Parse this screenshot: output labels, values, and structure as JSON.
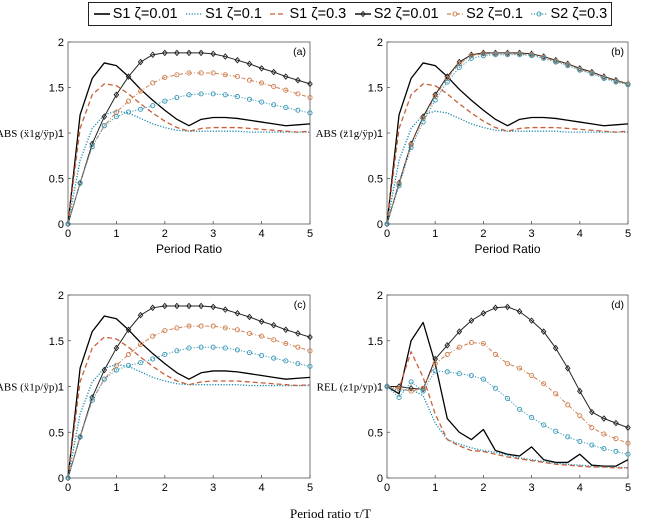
{
  "legend": [
    {
      "label": "S1 ζ=0.01",
      "color": "#000000",
      "dash": "",
      "marker": ""
    },
    {
      "label": "S1 ζ=0.1",
      "color": "#1b8bb0",
      "dash": "1.2,1.6",
      "marker": ""
    },
    {
      "label": "S1 ζ=0.3",
      "color": "#c8603a",
      "dash": "5,3",
      "marker": ""
    },
    {
      "label": "S2 ζ=0.01",
      "color": "#222222",
      "dash": "",
      "marker": "diamond"
    },
    {
      "label": "S2 ζ=0.1",
      "color": "#d08050",
      "dash": "4,2,1,2",
      "marker": "circle"
    },
    {
      "label": "S2 ζ=0.3",
      "color": "#3a9ab8",
      "dash": "1.2,1.6",
      "marker": "circle"
    }
  ],
  "global_xlabel": "Period ratio τ/T",
  "chart_data": [
    {
      "type": "line",
      "panel_label": "(a)",
      "xlabel": "Period Ratio",
      "ylabel": "ABS (ẍ1g/ÿp)",
      "xlim": [
        0,
        5
      ],
      "ylim": [
        0,
        2
      ],
      "xticks": [
        "0",
        "1",
        "2",
        "3",
        "4",
        "5"
      ],
      "yticks": [
        "0",
        "0.5",
        "1",
        "1.5",
        "2"
      ],
      "x": [
        0,
        0.25,
        0.5,
        0.75,
        1,
        1.25,
        1.5,
        1.75,
        2,
        2.25,
        2.5,
        2.75,
        3,
        3.25,
        3.5,
        3.75,
        4,
        4.25,
        4.5,
        4.75,
        5
      ],
      "series": [
        {
          "name": "S1 ζ=0.01",
          "values": [
            0,
            1.2,
            1.6,
            1.77,
            1.74,
            1.62,
            1.48,
            1.36,
            1.25,
            1.15,
            1.08,
            1.15,
            1.17,
            1.17,
            1.16,
            1.14,
            1.12,
            1.1,
            1.08,
            1.09,
            1.1
          ]
        },
        {
          "name": "S1 ζ=0.1",
          "values": [
            0,
            0.7,
            1.05,
            1.2,
            1.24,
            1.22,
            1.16,
            1.1,
            1.06,
            1.03,
            1.02,
            1.02,
            1.02,
            1.02,
            1.02,
            1.01,
            1.01,
            1.01,
            1.01,
            1.01,
            1.01
          ]
        },
        {
          "name": "S1 ζ=0.3",
          "values": [
            0,
            1.05,
            1.42,
            1.54,
            1.52,
            1.43,
            1.32,
            1.22,
            1.13,
            1.06,
            1.02,
            1.05,
            1.06,
            1.06,
            1.06,
            1.05,
            1.04,
            1.03,
            1.02,
            1.01,
            1.02
          ]
        },
        {
          "name": "S2 ζ=0.01",
          "values": [
            0,
            0.45,
            0.88,
            1.18,
            1.42,
            1.62,
            1.78,
            1.86,
            1.88,
            1.88,
            1.88,
            1.88,
            1.87,
            1.84,
            1.8,
            1.76,
            1.71,
            1.67,
            1.62,
            1.58,
            1.54
          ]
        },
        {
          "name": "S2 ζ=0.1",
          "values": [
            0,
            0.45,
            0.85,
            1.08,
            1.23,
            1.35,
            1.46,
            1.55,
            1.61,
            1.64,
            1.66,
            1.66,
            1.66,
            1.64,
            1.62,
            1.58,
            1.55,
            1.51,
            1.47,
            1.43,
            1.39
          ]
        },
        {
          "name": "S2 ζ=0.3",
          "values": [
            0,
            0.45,
            0.85,
            1.08,
            1.18,
            1.23,
            1.26,
            1.3,
            1.35,
            1.39,
            1.42,
            1.43,
            1.43,
            1.42,
            1.4,
            1.37,
            1.34,
            1.31,
            1.28,
            1.25,
            1.22
          ]
        }
      ]
    },
    {
      "type": "line",
      "panel_label": "(b)",
      "xlabel": "Period Ratio",
      "ylabel": "ABS (z̈1g/ÿp)",
      "xlim": [
        0,
        5
      ],
      "ylim": [
        0,
        2
      ],
      "xticks": [
        "0",
        "1",
        "2",
        "3",
        "4",
        "5"
      ],
      "yticks": [
        "0",
        "0.5",
        "1",
        "1.5",
        "2"
      ],
      "x": [
        0,
        0.25,
        0.5,
        0.75,
        1,
        1.25,
        1.5,
        1.75,
        2,
        2.25,
        2.5,
        2.75,
        3,
        3.25,
        3.5,
        3.75,
        4,
        4.25,
        4.5,
        4.75,
        5
      ],
      "series": [
        {
          "name": "S1 ζ=0.01",
          "values": [
            0,
            1.2,
            1.6,
            1.77,
            1.74,
            1.62,
            1.48,
            1.36,
            1.25,
            1.15,
            1.08,
            1.15,
            1.17,
            1.17,
            1.16,
            1.14,
            1.12,
            1.1,
            1.08,
            1.09,
            1.1
          ]
        },
        {
          "name": "S1 ζ=0.1",
          "values": [
            0,
            0.7,
            1.05,
            1.2,
            1.24,
            1.22,
            1.16,
            1.1,
            1.06,
            1.03,
            1.02,
            1.02,
            1.02,
            1.02,
            1.02,
            1.01,
            1.01,
            1.01,
            1.01,
            1.01,
            1.01
          ]
        },
        {
          "name": "S1 ζ=0.3",
          "values": [
            0,
            1.05,
            1.42,
            1.54,
            1.52,
            1.43,
            1.32,
            1.22,
            1.13,
            1.06,
            1.02,
            1.05,
            1.06,
            1.06,
            1.06,
            1.05,
            1.04,
            1.03,
            1.02,
            1.01,
            1.02
          ]
        },
        {
          "name": "S2 ζ=0.01",
          "values": [
            0,
            0.45,
            0.88,
            1.18,
            1.42,
            1.62,
            1.78,
            1.86,
            1.88,
            1.88,
            1.88,
            1.88,
            1.87,
            1.84,
            1.8,
            1.76,
            1.71,
            1.67,
            1.62,
            1.58,
            1.54
          ]
        },
        {
          "name": "S2 ζ=0.1",
          "values": [
            0,
            0.44,
            0.87,
            1.16,
            1.4,
            1.6,
            1.76,
            1.85,
            1.87,
            1.87,
            1.87,
            1.87,
            1.86,
            1.83,
            1.79,
            1.75,
            1.7,
            1.66,
            1.61,
            1.57,
            1.54
          ]
        },
        {
          "name": "S2 ζ=0.3",
          "values": [
            0,
            0.42,
            0.84,
            1.12,
            1.36,
            1.56,
            1.72,
            1.82,
            1.85,
            1.86,
            1.86,
            1.86,
            1.85,
            1.82,
            1.78,
            1.74,
            1.69,
            1.65,
            1.6,
            1.56,
            1.53
          ]
        }
      ]
    },
    {
      "type": "line",
      "panel_label": "(c)",
      "xlabel": "",
      "ylabel": "ABS (ẍ1p/ÿp)",
      "xlim": [
        0,
        5
      ],
      "ylim": [
        0,
        2
      ],
      "xticks": [
        "0",
        "1",
        "2",
        "3",
        "4",
        "5"
      ],
      "yticks": [
        "0",
        "0.5",
        "1",
        "1.5",
        "2"
      ],
      "x": [
        0,
        0.25,
        0.5,
        0.75,
        1,
        1.25,
        1.5,
        1.75,
        2,
        2.25,
        2.5,
        2.75,
        3,
        3.25,
        3.5,
        3.75,
        4,
        4.25,
        4.5,
        4.75,
        5
      ],
      "series": [
        {
          "name": "S1 ζ=0.01",
          "values": [
            0,
            1.2,
            1.6,
            1.77,
            1.74,
            1.62,
            1.48,
            1.36,
            1.25,
            1.15,
            1.08,
            1.15,
            1.17,
            1.17,
            1.16,
            1.14,
            1.12,
            1.1,
            1.08,
            1.09,
            1.1
          ]
        },
        {
          "name": "S1 ζ=0.1",
          "values": [
            0,
            0.7,
            1.05,
            1.2,
            1.24,
            1.22,
            1.16,
            1.1,
            1.06,
            1.03,
            1.02,
            1.02,
            1.02,
            1.02,
            1.02,
            1.01,
            1.01,
            1.01,
            1.01,
            1.01,
            1.01
          ]
        },
        {
          "name": "S1 ζ=0.3",
          "values": [
            0,
            1.05,
            1.42,
            1.54,
            1.52,
            1.43,
            1.32,
            1.22,
            1.13,
            1.06,
            1.02,
            1.05,
            1.06,
            1.06,
            1.06,
            1.05,
            1.04,
            1.03,
            1.02,
            1.01,
            1.02
          ]
        },
        {
          "name": "S2 ζ=0.01",
          "values": [
            0,
            0.45,
            0.88,
            1.18,
            1.42,
            1.62,
            1.78,
            1.86,
            1.88,
            1.88,
            1.88,
            1.88,
            1.87,
            1.84,
            1.8,
            1.76,
            1.71,
            1.67,
            1.62,
            1.58,
            1.54
          ]
        },
        {
          "name": "S2 ζ=0.1",
          "values": [
            0,
            0.45,
            0.85,
            1.08,
            1.23,
            1.35,
            1.46,
            1.55,
            1.61,
            1.64,
            1.66,
            1.66,
            1.66,
            1.64,
            1.62,
            1.58,
            1.55,
            1.51,
            1.47,
            1.43,
            1.39
          ]
        },
        {
          "name": "S2 ζ=0.3",
          "values": [
            0,
            0.45,
            0.85,
            1.08,
            1.18,
            1.23,
            1.26,
            1.3,
            1.35,
            1.39,
            1.42,
            1.43,
            1.43,
            1.42,
            1.4,
            1.37,
            1.34,
            1.31,
            1.28,
            1.25,
            1.22
          ]
        }
      ]
    },
    {
      "type": "line",
      "panel_label": "(d)",
      "xlabel": "",
      "ylabel": "REL (z1p/yp)",
      "xlim": [
        0,
        5
      ],
      "ylim": [
        0,
        2
      ],
      "xticks": [
        "0",
        "1",
        "2",
        "3",
        "4",
        "5"
      ],
      "yticks": [
        "0",
        "0.5",
        "1",
        "1.5",
        "2"
      ],
      "x": [
        0,
        0.25,
        0.5,
        0.75,
        1,
        1.25,
        1.5,
        1.75,
        2,
        2.25,
        2.5,
        2.75,
        3,
        3.25,
        3.5,
        3.75,
        4,
        4.25,
        4.5,
        4.75,
        5
      ],
      "series": [
        {
          "name": "S1 ζ=0.01",
          "values": [
            1,
            0.92,
            1.5,
            1.7,
            1.25,
            0.65,
            0.5,
            0.42,
            0.53,
            0.3,
            0.26,
            0.24,
            0.34,
            0.2,
            0.17,
            0.17,
            0.26,
            0.14,
            0.13,
            0.13,
            0.2
          ]
        },
        {
          "name": "S1 ζ=0.1",
          "values": [
            1,
            0.95,
            0.97,
            0.9,
            0.6,
            0.42,
            0.37,
            0.33,
            0.3,
            0.28,
            0.25,
            0.22,
            0.2,
            0.18,
            0.16,
            0.15,
            0.14,
            0.13,
            0.12,
            0.12,
            0.11
          ]
        },
        {
          "name": "S1 ζ=0.3",
          "values": [
            1,
            0.98,
            1.38,
            1.1,
            0.7,
            0.42,
            0.35,
            0.3,
            0.29,
            0.26,
            0.23,
            0.21,
            0.19,
            0.17,
            0.15,
            0.14,
            0.13,
            0.12,
            0.12,
            0.11,
            0.11
          ]
        },
        {
          "name": "S2 ζ=0.01",
          "values": [
            1,
            1,
            0.98,
            0.97,
            1.3,
            1.45,
            1.6,
            1.72,
            1.8,
            1.86,
            1.87,
            1.82,
            1.72,
            1.6,
            1.42,
            1.2,
            0.95,
            0.72,
            0.65,
            0.6,
            0.55
          ]
        },
        {
          "name": "S2 ζ=0.1",
          "values": [
            1,
            0.98,
            0.95,
            0.98,
            1.25,
            1.35,
            1.43,
            1.48,
            1.47,
            1.35,
            1.25,
            1.2,
            1.12,
            1.03,
            0.92,
            0.8,
            0.68,
            0.55,
            0.48,
            0.43,
            0.38
          ]
        },
        {
          "name": "S2 ζ=0.3",
          "values": [
            1,
            0.88,
            1.05,
            0.95,
            1.17,
            1.16,
            1.14,
            1.12,
            1.08,
            0.98,
            0.87,
            0.75,
            0.66,
            0.58,
            0.51,
            0.45,
            0.4,
            0.36,
            0.32,
            0.29,
            0.26
          ]
        }
      ]
    }
  ]
}
